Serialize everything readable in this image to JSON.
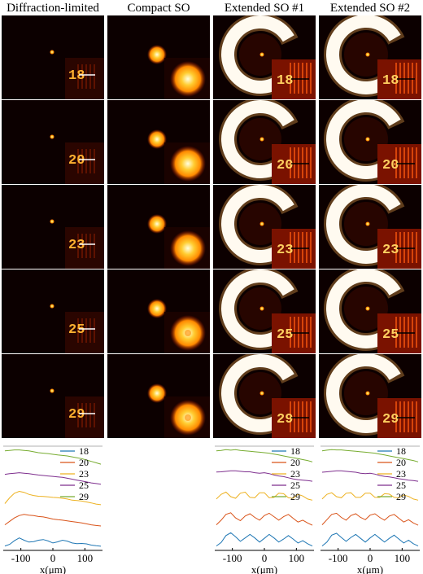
{
  "column_titles": [
    "Diffraction-limited",
    "Compact SO",
    "Extended SO #1",
    "Extended SO #2"
  ],
  "row_numbers": [
    "18",
    "20",
    "23",
    "25",
    "29"
  ],
  "colors": {
    "background": "#0c0000",
    "hot_core": "#ffffe0",
    "ring": "#fffaf0",
    "mid": "#ff8a00",
    "edge": "#a01000"
  },
  "chart_data": [
    {
      "type": "line",
      "panel": "Diffraction-limited",
      "xlabel": "x(μm)",
      "xticks": [
        "-100",
        "0",
        "100"
      ],
      "xlim": [
        -155,
        155
      ],
      "legend": [
        "18",
        "20",
        "23",
        "25",
        "29"
      ],
      "series_colors": [
        "#1f77b4",
        "#d95319",
        "#edb120",
        "#7e2f8e",
        "#77ac30"
      ],
      "series": [
        {
          "name": "18",
          "offset": 0,
          "x": [
            -150,
            -135,
            -120,
            -105,
            -90,
            -75,
            -60,
            -45,
            -30,
            -15,
            0,
            15,
            30,
            45,
            60,
            75,
            90,
            105,
            120,
            135,
            150
          ],
          "y": [
            0.05,
            0.12,
            0.28,
            0.4,
            0.3,
            0.22,
            0.24,
            0.3,
            0.33,
            0.27,
            0.18,
            0.23,
            0.3,
            0.26,
            0.18,
            0.15,
            0.16,
            0.14,
            0.09,
            0.06,
            0.04
          ]
        },
        {
          "name": "20",
          "offset": 1,
          "x": [
            -150,
            -135,
            -120,
            -105,
            -90,
            -75,
            -60,
            -45,
            -30,
            -15,
            0,
            15,
            30,
            45,
            60,
            75,
            90,
            105,
            120,
            135,
            150
          ],
          "y": [
            0.1,
            0.25,
            0.4,
            0.5,
            0.55,
            0.52,
            0.5,
            0.46,
            0.44,
            0.4,
            0.35,
            0.32,
            0.3,
            0.27,
            0.24,
            0.21,
            0.18,
            0.14,
            0.1,
            0.07,
            0.05
          ]
        },
        {
          "name": "23",
          "offset": 2,
          "x": [
            -150,
            -135,
            -120,
            -105,
            -90,
            -75,
            -60,
            -45,
            -30,
            -15,
            0,
            15,
            30,
            45,
            60,
            75,
            90,
            105,
            120,
            135,
            150
          ],
          "y": [
            0.15,
            0.4,
            0.6,
            0.68,
            0.64,
            0.55,
            0.5,
            0.47,
            0.46,
            0.44,
            0.42,
            0.41,
            0.38,
            0.35,
            0.3,
            0.28,
            0.26,
            0.22,
            0.18,
            0.13,
            0.1
          ]
        },
        {
          "name": "25",
          "offset": 3,
          "x": [
            -150,
            -135,
            -120,
            -105,
            -90,
            -75,
            -60,
            -45,
            -30,
            -15,
            0,
            15,
            30,
            45,
            60,
            75,
            90,
            105,
            120,
            135,
            150
          ],
          "y": [
            0.55,
            0.58,
            0.6,
            0.62,
            0.6,
            0.58,
            0.55,
            0.52,
            0.5,
            0.48,
            0.46,
            0.44,
            0.42,
            0.38,
            0.34,
            0.3,
            0.26,
            0.22,
            0.18,
            0.15,
            0.12
          ]
        },
        {
          "name": "29",
          "offset": 4,
          "x": [
            -150,
            -135,
            -120,
            -105,
            -90,
            -75,
            -60,
            -45,
            -30,
            -15,
            0,
            15,
            30,
            45,
            60,
            75,
            90,
            105,
            120,
            135,
            150
          ],
          "y": [
            0.7,
            0.72,
            0.74,
            0.74,
            0.72,
            0.7,
            0.66,
            0.62,
            0.6,
            0.58,
            0.55,
            0.52,
            0.5,
            0.48,
            0.44,
            0.4,
            0.36,
            0.3,
            0.24,
            0.18,
            0.12
          ]
        }
      ]
    },
    {
      "type": "line",
      "panel": "Extended SO #1",
      "xlabel": "x(μm)",
      "xticks": [
        "-100",
        "0",
        "100"
      ],
      "xlim": [
        -155,
        155
      ],
      "legend": [
        "18",
        "20",
        "23",
        "25",
        "29"
      ],
      "series_colors": [
        "#1f77b4",
        "#d95319",
        "#edb120",
        "#7e2f8e",
        "#77ac30"
      ],
      "series": [
        {
          "name": "18",
          "offset": 0,
          "x": [
            -150,
            -135,
            -120,
            -105,
            -90,
            -75,
            -60,
            -45,
            -30,
            -15,
            0,
            15,
            30,
            45,
            60,
            75,
            90,
            105,
            120,
            135,
            150
          ],
          "y": [
            0.05,
            0.2,
            0.5,
            0.62,
            0.45,
            0.25,
            0.4,
            0.55,
            0.4,
            0.22,
            0.38,
            0.55,
            0.4,
            0.22,
            0.35,
            0.5,
            0.35,
            0.18,
            0.28,
            0.15,
            0.05
          ]
        },
        {
          "name": "20",
          "offset": 1,
          "x": [
            -150,
            -135,
            -120,
            -105,
            -90,
            -75,
            -60,
            -45,
            -30,
            -15,
            0,
            15,
            30,
            45,
            60,
            75,
            90,
            105,
            120,
            135,
            150
          ],
          "y": [
            0.1,
            0.3,
            0.55,
            0.62,
            0.4,
            0.28,
            0.48,
            0.58,
            0.42,
            0.3,
            0.5,
            0.6,
            0.45,
            0.3,
            0.45,
            0.55,
            0.38,
            0.22,
            0.3,
            0.18,
            0.08
          ]
        },
        {
          "name": "23",
          "offset": 2,
          "x": [
            -150,
            -135,
            -120,
            -105,
            -90,
            -75,
            -60,
            -45,
            -30,
            -15,
            0,
            15,
            30,
            45,
            60,
            75,
            90,
            105,
            120,
            135,
            150
          ],
          "y": [
            0.35,
            0.55,
            0.65,
            0.45,
            0.38,
            0.6,
            0.65,
            0.42,
            0.4,
            0.62,
            0.62,
            0.4,
            0.42,
            0.6,
            0.58,
            0.4,
            0.38,
            0.55,
            0.48,
            0.35,
            0.3
          ]
        },
        {
          "name": "25",
          "offset": 3,
          "x": [
            -150,
            -135,
            -120,
            -105,
            -90,
            -75,
            -60,
            -45,
            -30,
            -15,
            0,
            15,
            30,
            45,
            60,
            75,
            90,
            105,
            120,
            135,
            150
          ],
          "y": [
            0.65,
            0.66,
            0.68,
            0.7,
            0.7,
            0.68,
            0.66,
            0.66,
            0.62,
            0.6,
            0.62,
            0.58,
            0.52,
            0.48,
            0.45,
            0.4,
            0.35,
            0.32,
            0.3,
            0.28,
            0.25
          ]
        },
        {
          "name": "29",
          "offset": 4,
          "x": [
            -150,
            -135,
            -120,
            -105,
            -90,
            -75,
            -60,
            -45,
            -30,
            -15,
            0,
            15,
            30,
            45,
            60,
            75,
            90,
            105,
            120,
            135,
            150
          ],
          "y": [
            0.7,
            0.72,
            0.75,
            0.73,
            0.75,
            0.72,
            0.7,
            0.68,
            0.66,
            0.64,
            0.62,
            0.6,
            0.56,
            0.52,
            0.48,
            0.44,
            0.4,
            0.36,
            0.32,
            0.28,
            0.22
          ]
        }
      ]
    },
    {
      "type": "line",
      "panel": "Extended SO #2",
      "xlabel": "x(μm)",
      "xticks": [
        "-100",
        "0",
        "100"
      ],
      "xlim": [
        -155,
        155
      ],
      "legend": [
        "18",
        "20",
        "23",
        "25",
        "29"
      ],
      "series_colors": [
        "#1f77b4",
        "#d95319",
        "#edb120",
        "#7e2f8e",
        "#77ac30"
      ],
      "series": [
        {
          "name": "18",
          "offset": 0,
          "x": [
            -150,
            -135,
            -120,
            -105,
            -90,
            -75,
            -60,
            -45,
            -30,
            -15,
            0,
            15,
            30,
            45,
            60,
            75,
            90,
            105,
            120,
            135,
            150
          ],
          "y": [
            0.05,
            0.22,
            0.52,
            0.6,
            0.42,
            0.25,
            0.42,
            0.55,
            0.38,
            0.22,
            0.4,
            0.55,
            0.38,
            0.22,
            0.38,
            0.52,
            0.35,
            0.18,
            0.3,
            0.15,
            0.05
          ]
        },
        {
          "name": "20",
          "offset": 1,
          "x": [
            -150,
            -135,
            -120,
            -105,
            -90,
            -75,
            -60,
            -45,
            -30,
            -15,
            0,
            15,
            30,
            45,
            60,
            75,
            90,
            105,
            120,
            135,
            150
          ],
          "y": [
            0.1,
            0.32,
            0.55,
            0.6,
            0.42,
            0.3,
            0.5,
            0.58,
            0.42,
            0.32,
            0.52,
            0.58,
            0.42,
            0.3,
            0.48,
            0.55,
            0.38,
            0.22,
            0.32,
            0.18,
            0.08
          ]
        },
        {
          "name": "23",
          "offset": 2,
          "x": [
            -150,
            -135,
            -120,
            -105,
            -90,
            -75,
            -60,
            -45,
            -30,
            -15,
            0,
            15,
            30,
            45,
            60,
            75,
            90,
            105,
            120,
            135,
            150
          ],
          "y": [
            0.35,
            0.55,
            0.62,
            0.45,
            0.4,
            0.6,
            0.62,
            0.42,
            0.42,
            0.6,
            0.6,
            0.42,
            0.42,
            0.58,
            0.56,
            0.42,
            0.4,
            0.52,
            0.46,
            0.35,
            0.3
          ]
        },
        {
          "name": "25",
          "offset": 3,
          "x": [
            -150,
            -135,
            -120,
            -105,
            -90,
            -75,
            -60,
            -45,
            -30,
            -15,
            0,
            15,
            30,
            45,
            60,
            75,
            90,
            105,
            120,
            135,
            150
          ],
          "y": [
            0.64,
            0.66,
            0.68,
            0.7,
            0.7,
            0.68,
            0.66,
            0.64,
            0.6,
            0.58,
            0.6,
            0.56,
            0.5,
            0.46,
            0.44,
            0.4,
            0.36,
            0.33,
            0.3,
            0.28,
            0.25
          ]
        },
        {
          "name": "29",
          "offset": 4,
          "x": [
            -150,
            -135,
            -120,
            -105,
            -90,
            -75,
            -60,
            -45,
            -30,
            -15,
            0,
            15,
            30,
            45,
            60,
            75,
            90,
            105,
            120,
            135,
            150
          ],
          "y": [
            0.7,
            0.73,
            0.75,
            0.74,
            0.74,
            0.72,
            0.7,
            0.68,
            0.66,
            0.64,
            0.62,
            0.6,
            0.56,
            0.52,
            0.48,
            0.44,
            0.4,
            0.36,
            0.32,
            0.28,
            0.22
          ]
        }
      ]
    }
  ]
}
